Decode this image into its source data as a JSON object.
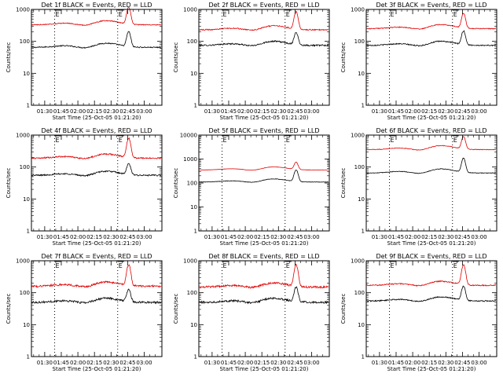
{
  "chart_data": [
    {
      "type": "line",
      "title": "Det 1f BLACK = Events, RED = LLD",
      "xlabel": "Start Time (25-Oct-05 01:21:20)",
      "ylabel": "Counts/sec",
      "yscale": "log",
      "ylim": [
        1,
        1000
      ],
      "y_ticks": [
        "1",
        "10",
        "100",
        "1000"
      ],
      "xlim_min": [
        -12,
        106
      ],
      "x_ticks": [
        "01:30",
        "01:45",
        "02:00",
        "02:15",
        "02:30",
        "02:45",
        "03:00"
      ],
      "x_tick_minutes": [
        0,
        15,
        30,
        45,
        60,
        75,
        90
      ],
      "vlines_min": [
        9,
        66
      ],
      "flags": [
        "E",
        "E"
      ],
      "colors": {
        "events": "#000000",
        "lld": "#e00000"
      },
      "series": [
        {
          "legend_word": "BLACK",
          "role": "Events",
          "base": 65,
          "peak": 190,
          "peak_at": 76,
          "noise": 0.04
        },
        {
          "legend_word": "RED",
          "role": "LLD",
          "base": 330,
          "peak": 1100,
          "peak_at": 76,
          "noise": 0.03
        }
      ]
    },
    {
      "type": "line",
      "title": "Det 2f BLACK = Events, RED = LLD",
      "xlabel": "Start Time (25-Oct-05 01:21:20)",
      "ylabel": "Counts/sec",
      "yscale": "log",
      "ylim": [
        1,
        1000
      ],
      "y_ticks": [
        "1",
        "10",
        "100",
        "1000"
      ],
      "xlim_min": [
        -12,
        106
      ],
      "x_ticks": [
        "01:30",
        "01:45",
        "02:00",
        "02:15",
        "02:30",
        "02:45",
        "03:00"
      ],
      "x_tick_minutes": [
        0,
        15,
        30,
        45,
        60,
        75,
        90
      ],
      "vlines_min": [
        9,
        66
      ],
      "flags": [
        "E",
        "E"
      ],
      "colors": {
        "events": "#000000",
        "lld": "#e00000"
      },
      "series": [
        {
          "legend_word": "BLACK",
          "role": "Events",
          "base": 75,
          "peak": 180,
          "peak_at": 76,
          "noise": 0.05
        },
        {
          "legend_word": "RED",
          "role": "LLD",
          "base": 230,
          "peak": 800,
          "peak_at": 76,
          "noise": 0.04
        }
      ]
    },
    {
      "type": "line",
      "title": "Det 3f BLACK = Events, RED = LLD",
      "xlabel": "Start Time (25-Oct-05 01:21:20)",
      "ylabel": "Counts/sec",
      "yscale": "log",
      "ylim": [
        1,
        1000
      ],
      "y_ticks": [
        "1",
        "10",
        "100",
        "1000"
      ],
      "xlim_min": [
        -12,
        106
      ],
      "x_ticks": [
        "01:30",
        "01:45",
        "02:00",
        "02:15",
        "02:30",
        "02:45",
        "03:00"
      ],
      "x_tick_minutes": [
        0,
        15,
        30,
        45,
        60,
        75,
        90
      ],
      "vlines_min": [
        9,
        66
      ],
      "flags": [
        "E",
        "E"
      ],
      "colors": {
        "events": "#000000",
        "lld": "#e00000"
      },
      "series": [
        {
          "legend_word": "BLACK",
          "role": "Events",
          "base": 75,
          "peak": 200,
          "peak_at": 76,
          "noise": 0.04
        },
        {
          "legend_word": "RED",
          "role": "LLD",
          "base": 250,
          "peak": 700,
          "peak_at": 76,
          "noise": 0.03
        }
      ]
    },
    {
      "type": "line",
      "title": "Det 4f BLACK = Events, RED = LLD",
      "xlabel": "Start Time (25-Oct-05 01:21:20)",
      "ylabel": "Counts/sec",
      "yscale": "log",
      "ylim": [
        1,
        1000
      ],
      "y_ticks": [
        "1",
        "10",
        "100",
        "1000"
      ],
      "xlim_min": [
        -12,
        106
      ],
      "x_ticks": [
        "01:30",
        "01:45",
        "02:00",
        "02:15",
        "02:30",
        "02:45",
        "03:00"
      ],
      "x_tick_minutes": [
        0,
        15,
        30,
        45,
        60,
        75,
        90
      ],
      "vlines_min": [
        9,
        66
      ],
      "flags": [
        "E",
        "E"
      ],
      "colors": {
        "events": "#000000",
        "lld": "#e00000"
      },
      "series": [
        {
          "legend_word": "BLACK",
          "role": "Events",
          "base": 55,
          "peak": 120,
          "peak_at": 76,
          "noise": 0.05
        },
        {
          "legend_word": "RED",
          "role": "LLD",
          "base": 190,
          "peak": 750,
          "peak_at": 76,
          "noise": 0.05
        }
      ]
    },
    {
      "type": "line",
      "title": "Det 5f BLACK = Events, RED = LLD",
      "xlabel": "Start Time (25-Oct-05 01:21:20)",
      "ylabel": "Counts/sec",
      "yscale": "log",
      "ylim": [
        1,
        10000
      ],
      "y_ticks": [
        "1",
        "10",
        "100",
        "1000",
        "10000"
      ],
      "xlim_min": [
        -12,
        106
      ],
      "x_ticks": [
        "01:30",
        "01:45",
        "02:00",
        "02:15",
        "02:30",
        "02:45",
        "03:00"
      ],
      "x_tick_minutes": [
        0,
        15,
        30,
        45,
        60,
        75,
        90
      ],
      "vlines_min": [
        9,
        66
      ],
      "flags": [
        "E",
        "E"
      ],
      "colors": {
        "events": "#000000",
        "lld": "#e00000"
      },
      "series": [
        {
          "legend_word": "BLACK",
          "role": "Events",
          "base": 110,
          "peak": 330,
          "peak_at": 76,
          "noise": 0.02
        },
        {
          "legend_word": "RED",
          "role": "LLD",
          "base": 350,
          "peak": 700,
          "peak_at": 76,
          "noise": 0.01
        }
      ]
    },
    {
      "type": "line",
      "title": "Det 6f BLACK = Events, RED = LLD",
      "xlabel": "Start Time (25-Oct-05 01:21:20)",
      "ylabel": "Counts/sec",
      "yscale": "log",
      "ylim": [
        1,
        1000
      ],
      "y_ticks": [
        "1",
        "10",
        "100",
        "1000"
      ],
      "xlim_min": [
        -12,
        106
      ],
      "x_ticks": [
        "01:30",
        "01:45",
        "02:00",
        "02:15",
        "02:30",
        "02:45",
        "03:00"
      ],
      "x_tick_minutes": [
        0,
        15,
        30,
        45,
        60,
        75,
        90
      ],
      "vlines_min": [
        9,
        66
      ],
      "flags": [
        "E",
        "E"
      ],
      "colors": {
        "events": "#000000",
        "lld": "#e00000"
      },
      "series": [
        {
          "legend_word": "BLACK",
          "role": "Events",
          "base": 65,
          "peak": 180,
          "peak_at": 76,
          "noise": 0.02
        },
        {
          "legend_word": "RED",
          "role": "LLD",
          "base": 350,
          "peak": 850,
          "peak_at": 76,
          "noise": 0.02
        }
      ]
    },
    {
      "type": "line",
      "title": "Det 7f BLACK = Events, RED = LLD",
      "xlabel": "Start Time (25-Oct-05 01:21:20)",
      "ylabel": "Counts/sec",
      "yscale": "log",
      "ylim": [
        1,
        1000
      ],
      "y_ticks": [
        "1",
        "10",
        "100",
        "1000"
      ],
      "xlim_min": [
        -12,
        106
      ],
      "x_ticks": [
        "01:30",
        "01:45",
        "02:00",
        "02:15",
        "02:30",
        "02:45",
        "03:00"
      ],
      "x_tick_minutes": [
        0,
        15,
        30,
        45,
        60,
        75,
        90
      ],
      "vlines_min": [
        9,
        66
      ],
      "flags": [
        "E",
        "E"
      ],
      "colors": {
        "events": "#000000",
        "lld": "#e00000"
      },
      "series": [
        {
          "legend_word": "BLACK",
          "role": "Events",
          "base": 50,
          "peak": 120,
          "peak_at": 76,
          "noise": 0.07
        },
        {
          "legend_word": "RED",
          "role": "LLD",
          "base": 160,
          "peak": 700,
          "peak_at": 76,
          "noise": 0.07
        }
      ]
    },
    {
      "type": "line",
      "title": "Det 8f BLACK = Events, RED = LLD",
      "xlabel": "Start Time (25-Oct-05 01:21:20)",
      "ylabel": "Counts/sec",
      "yscale": "log",
      "ylim": [
        1,
        1000
      ],
      "y_ticks": [
        "1",
        "10",
        "100",
        "1000"
      ],
      "xlim_min": [
        -12,
        106
      ],
      "x_ticks": [
        "01:30",
        "01:45",
        "02:00",
        "02:15",
        "02:30",
        "02:45",
        "03:00"
      ],
      "x_tick_minutes": [
        0,
        15,
        30,
        45,
        60,
        75,
        90
      ],
      "vlines_min": [
        9,
        66
      ],
      "flags": [
        "E",
        "E"
      ],
      "colors": {
        "events": "#000000",
        "lld": "#e00000"
      },
      "series": [
        {
          "legend_word": "BLACK",
          "role": "Events",
          "base": 50,
          "peak": 140,
          "peak_at": 76,
          "noise": 0.07
        },
        {
          "legend_word": "RED",
          "role": "LLD",
          "base": 150,
          "peak": 700,
          "peak_at": 76,
          "noise": 0.07
        }
      ]
    },
    {
      "type": "line",
      "title": "Det 9f BLACK = Events, RED = LLD",
      "xlabel": "Start Time (25-Oct-05 01:21:20)",
      "ylabel": "Counts/sec",
      "yscale": "log",
      "ylim": [
        1,
        1000
      ],
      "y_ticks": [
        "1",
        "10",
        "100",
        "1000"
      ],
      "xlim_min": [
        -12,
        106
      ],
      "x_ticks": [
        "01:30",
        "01:45",
        "02:00",
        "02:15",
        "02:30",
        "02:45",
        "03:00"
      ],
      "x_tick_minutes": [
        0,
        15,
        30,
        45,
        60,
        75,
        90
      ],
      "vlines_min": [
        9,
        66
      ],
      "flags": [
        "E",
        "E"
      ],
      "colors": {
        "events": "#000000",
        "lld": "#e00000"
      },
      "series": [
        {
          "legend_word": "BLACK",
          "role": "Events",
          "base": 55,
          "peak": 150,
          "peak_at": 76,
          "noise": 0.04
        },
        {
          "legend_word": "RED",
          "role": "LLD",
          "base": 170,
          "peak": 700,
          "peak_at": 76,
          "noise": 0.04
        }
      ]
    }
  ]
}
